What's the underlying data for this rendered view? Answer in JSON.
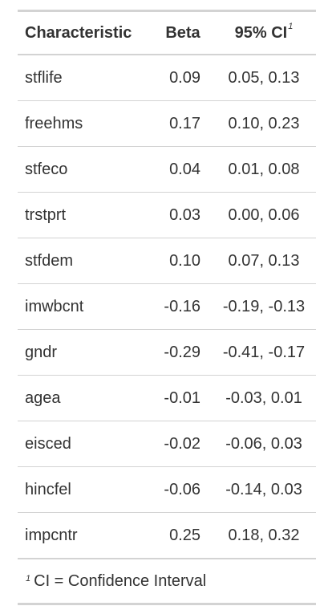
{
  "table": {
    "headers": {
      "characteristic": "Characteristic",
      "beta": "Beta",
      "ci": "95% CI",
      "ci_footnote_mark": "1"
    },
    "rows": [
      {
        "characteristic": "stflife",
        "beta": "0.09",
        "ci": "0.05, 0.13"
      },
      {
        "characteristic": "freehms",
        "beta": "0.17",
        "ci": "0.10, 0.23"
      },
      {
        "characteristic": "stfeco",
        "beta": "0.04",
        "ci": "0.01, 0.08"
      },
      {
        "characteristic": "trstprt",
        "beta": "0.03",
        "ci": "0.00, 0.06"
      },
      {
        "characteristic": "stfdem",
        "beta": "0.10",
        "ci": "0.07, 0.13"
      },
      {
        "characteristic": "imwbcnt",
        "beta": "-0.16",
        "ci": "-0.19, -0.13"
      },
      {
        "characteristic": "gndr",
        "beta": "-0.29",
        "ci": "-0.41, -0.17"
      },
      {
        "characteristic": "agea",
        "beta": "-0.01",
        "ci": "-0.03, 0.01"
      },
      {
        "characteristic": "eisced",
        "beta": "-0.02",
        "ci": "-0.06, 0.03"
      },
      {
        "characteristic": "hincfel",
        "beta": "-0.06",
        "ci": "-0.14, 0.03"
      },
      {
        "characteristic": "impcntr",
        "beta": "0.25",
        "ci": "0.18, 0.32"
      }
    ],
    "footnote": {
      "mark": "1",
      "text": "CI = Confidence Interval"
    }
  }
}
